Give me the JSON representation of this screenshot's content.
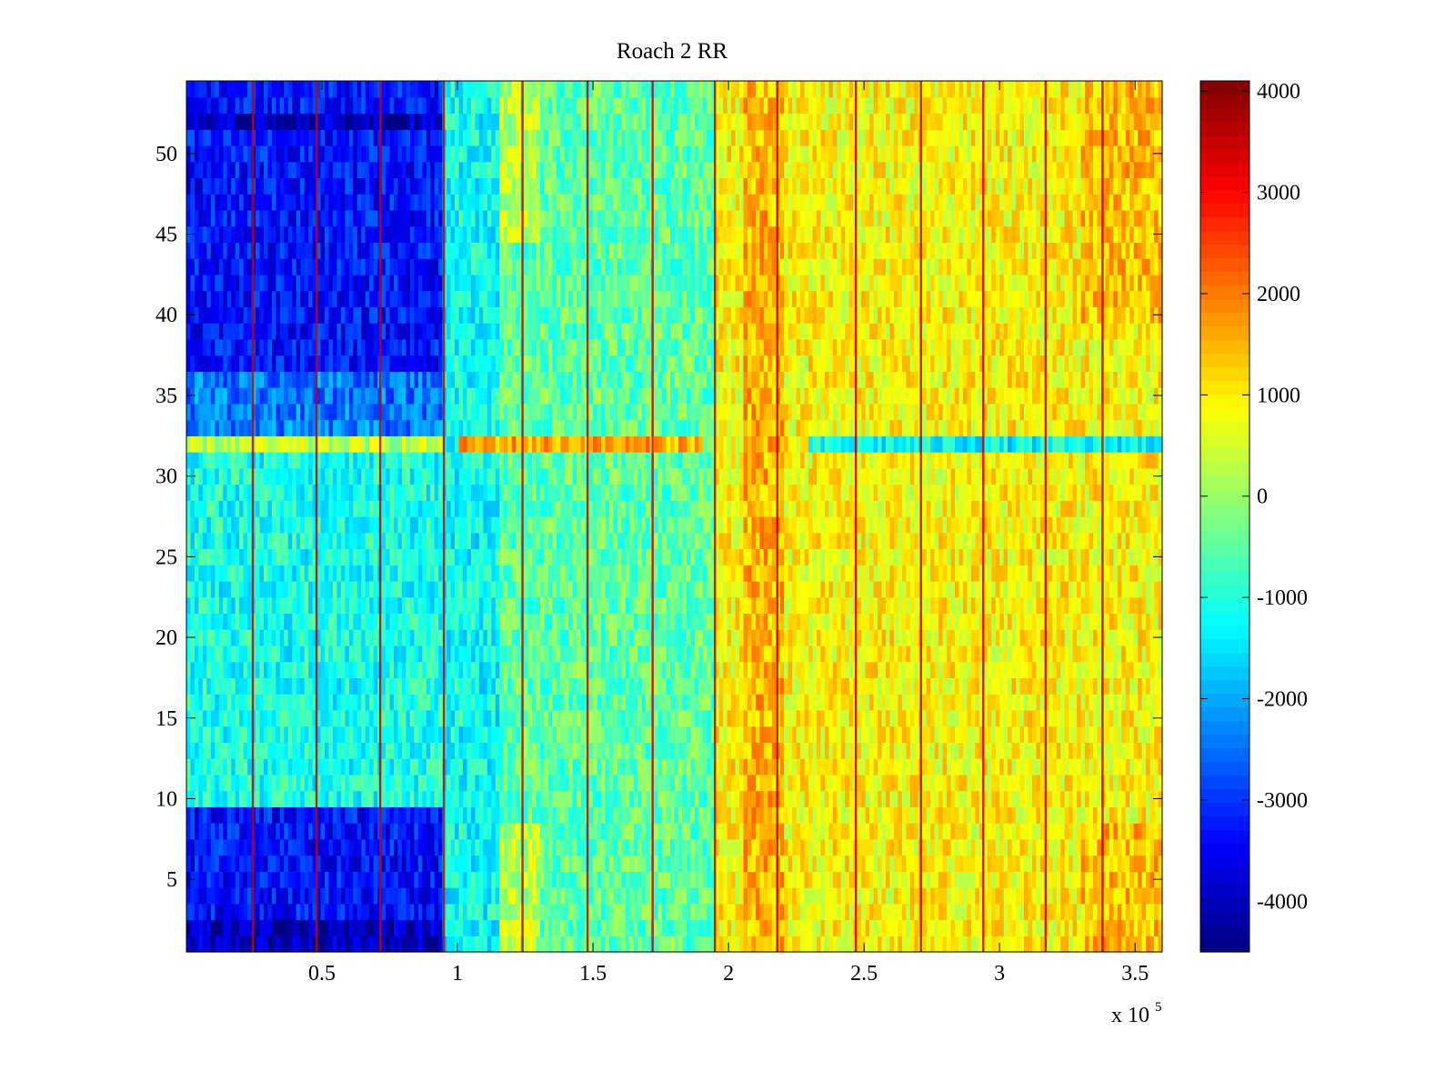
{
  "chart_data": {
    "type": "heatmap",
    "title": "Roach 2 RR",
    "xlabel": "",
    "ylabel": "",
    "x_scale_label": {
      "prefix": "x 10",
      "exponent": "5"
    },
    "xlim": [
      0,
      3.6
    ],
    "ylim": [
      0.5,
      54.5
    ],
    "rows": 54,
    "xticks": [
      0.5,
      1,
      1.5,
      2,
      2.5,
      3,
      3.5
    ],
    "xtick_labels": [
      "0.5",
      "1",
      "1.5",
      "2",
      "2.5",
      "3",
      "3.5"
    ],
    "yticks": [
      5,
      10,
      15,
      20,
      25,
      30,
      35,
      40,
      45,
      50
    ],
    "ytick_labels": [
      "5",
      "10",
      "15",
      "20",
      "25",
      "30",
      "35",
      "40",
      "45",
      "50"
    ],
    "colormap": "jet",
    "clim": [
      -4500,
      4100
    ],
    "colorbar_ticks": [
      4000,
      3000,
      2000,
      1000,
      0,
      -1000,
      -2000,
      -3000,
      -4000
    ],
    "colorbar_labels": [
      "4000",
      "3000",
      "2000",
      "1000",
      "0",
      "-1000",
      "-2000",
      "-3000",
      "-4000"
    ],
    "regions": [
      {
        "x_range": [
          0,
          0.95
        ],
        "description": "strongly negative on rows 1-9 and 33-54",
        "typical_value": -3500
      },
      {
        "x_range": [
          0,
          0.95
        ],
        "description": "moderately negative on rows 10-32",
        "typical_value": -1200
      },
      {
        "x_range": [
          0.95,
          1.95
        ],
        "description": "near zero / slightly negative",
        "typical_value": -500
      },
      {
        "x_range": [
          1.95,
          3.6
        ],
        "description": "positive",
        "typical_value": 1000
      }
    ],
    "row_32_band": {
      "row": 32,
      "x_range_positive": [
        1.0,
        1.9
      ],
      "value": 1600,
      "x_range_negative": [
        2.3,
        3.6
      ],
      "value_after": -1300
    },
    "vertical_spike_x": [
      0.245,
      0.48,
      0.715,
      0.95,
      1.24,
      1.48,
      1.72,
      1.95,
      2.18,
      2.47,
      2.71,
      2.94,
      3.17,
      3.38
    ],
    "vertical_spike_value": 3500
  },
  "colors": {
    "axis": "#000000",
    "background": "#ffffff"
  }
}
